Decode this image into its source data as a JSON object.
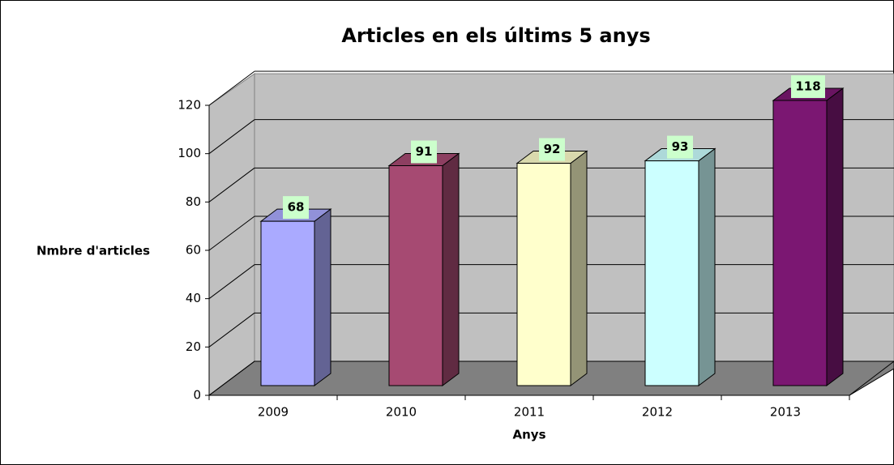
{
  "chart_data": {
    "type": "bar3d",
    "title": "Articles en els últims 5 anys",
    "x_label": "Anys",
    "y_label": "Nmbre d'articles",
    "categories": [
      "2009",
      "2010",
      "2011",
      "2012",
      "2013"
    ],
    "values": [
      68,
      91,
      92,
      93,
      118
    ],
    "colors": [
      "#aaaaff",
      "#a64a72",
      "#ffffcc",
      "#ccffff",
      "#7b1772"
    ],
    "ylim": [
      0,
      120
    ],
    "yticks": [
      0,
      20,
      40,
      60,
      80,
      100,
      120
    ],
    "grid": true
  }
}
